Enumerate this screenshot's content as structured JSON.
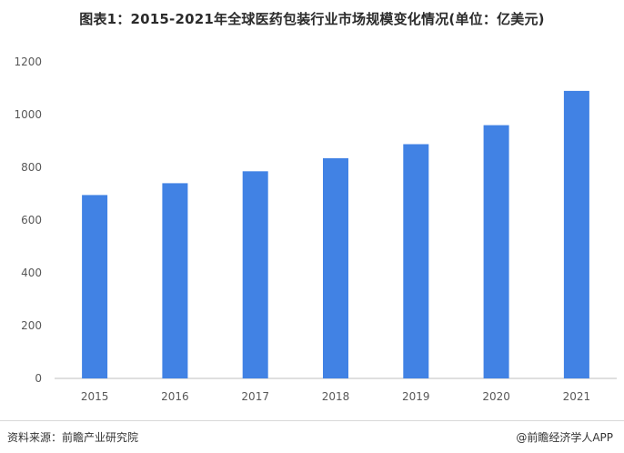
{
  "page": {
    "title": "图表1：2015-2021年全球医药包装行业市场规模变化情况(单位：亿美元)",
    "source": "资料来源：前瞻产业研究院",
    "brand": "@前瞻经济学人APP"
  },
  "colors": {
    "bar": "#4182e4",
    "axis": "#bfbfbf",
    "tick_text": "#595959"
  },
  "chart_data": {
    "type": "bar",
    "title": "图表1：2015-2021年全球医药包装行业市场规模变化情况(单位：亿美元)",
    "categories": [
      "2015",
      "2016",
      "2017",
      "2018",
      "2019",
      "2020",
      "2021"
    ],
    "values": [
      695,
      740,
      785,
      835,
      888,
      960,
      1090
    ],
    "xlabel": "",
    "ylabel": "",
    "ylim": [
      0,
      1200
    ],
    "yticks": [
      0,
      200,
      400,
      600,
      800,
      1000,
      1200
    ],
    "grid": false,
    "legend": "none"
  }
}
